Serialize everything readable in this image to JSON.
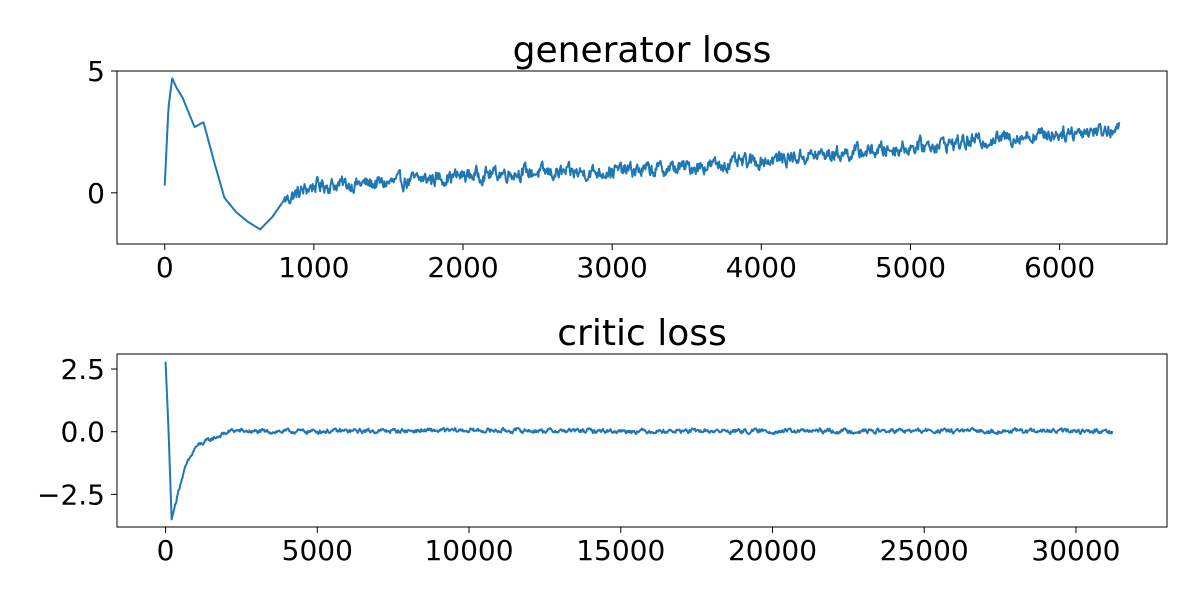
{
  "colors": {
    "series": "#1f77b4",
    "axis": "#000000",
    "background": "#ffffff"
  },
  "chart_data": [
    {
      "type": "line",
      "title": "generator loss",
      "xlabel": "",
      "ylabel": "",
      "xlim": [
        -320,
        6720
      ],
      "ylim": [
        -2.1,
        5.0
      ],
      "xticks": [
        0,
        1000,
        2000,
        3000,
        4000,
        5000,
        6000
      ],
      "xtick_labels": [
        "0",
        "1000",
        "2000",
        "3000",
        "4000",
        "5000",
        "6000"
      ],
      "yticks": [
        0,
        5
      ],
      "ytick_labels": [
        "0",
        "5"
      ],
      "grid": false,
      "series": [
        {
          "x": [
            0,
            25,
            50,
            80,
            120,
            200,
            260,
            330,
            400,
            480,
            560,
            640,
            720,
            800,
            900,
            1000,
            1200,
            1500,
            1800,
            2100,
            2400,
            2700,
            3000,
            3300,
            3600,
            3900,
            4200,
            4500,
            4800,
            5100,
            5400,
            5700,
            6000,
            6200,
            6400
          ],
          "y": [
            0.3,
            3.5,
            4.7,
            4.3,
            3.9,
            2.7,
            2.9,
            1.3,
            -0.2,
            -0.8,
            -1.2,
            -1.5,
            -1.0,
            -0.3,
            0.0,
            0.3,
            0.35,
            0.4,
            0.6,
            0.75,
            0.85,
            0.8,
            0.9,
            0.95,
            1.1,
            1.25,
            1.45,
            1.6,
            1.75,
            1.95,
            2.1,
            2.3,
            2.45,
            2.55,
            2.6
          ],
          "noise": 0.35,
          "smooth_until": 800
        }
      ]
    },
    {
      "type": "line",
      "title": "critic loss",
      "xlabel": "",
      "ylabel": "",
      "xlim": [
        -1600,
        33000
      ],
      "ylim": [
        -3.8,
        3.1
      ],
      "xticks": [
        0,
        5000,
        10000,
        15000,
        20000,
        25000,
        30000
      ],
      "xtick_labels": [
        "0",
        "5000",
        "10000",
        "15000",
        "20000",
        "25000",
        "30000"
      ],
      "yticks": [
        2.5,
        0.0,
        -2.5
      ],
      "ytick_labels": [
        "2.5",
        "0.0",
        "−2.5"
      ],
      "grid": false,
      "series": [
        {
          "x": [
            0,
            100,
            200,
            300,
            500,
            700,
            1000,
            1400,
            1800,
            2200,
            3000,
            5000,
            10000,
            15000,
            20000,
            25000,
            31200
          ],
          "y": [
            2.8,
            0.0,
            -3.5,
            -3.0,
            -2.0,
            -1.3,
            -0.6,
            -0.35,
            -0.15,
            0.05,
            0.0,
            0.02,
            0.05,
            0.03,
            0.02,
            0.03,
            0.02
          ],
          "noise": 0.1,
          "smooth_until": 300
        }
      ]
    }
  ]
}
